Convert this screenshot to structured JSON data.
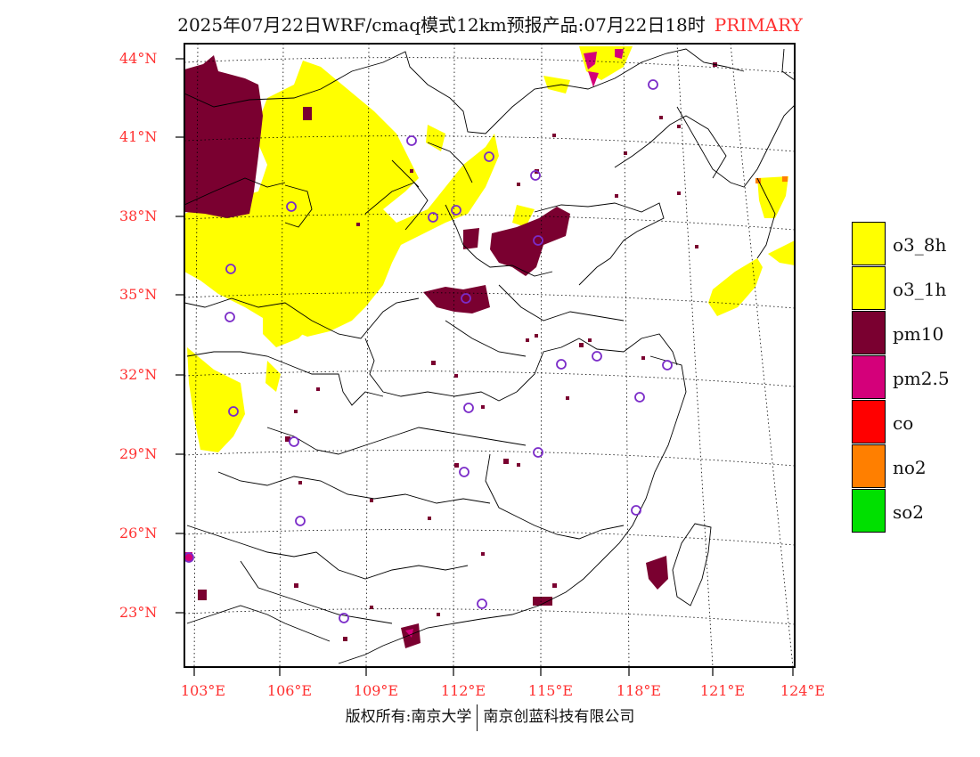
{
  "title": {
    "main": "2025年07月22日WRF/cmaq模式12km预报产品:07月22日18时",
    "tag": "PRIMARY"
  },
  "lat_labels": [
    "44°N",
    "41°N",
    "38°N",
    "35°N",
    "32°N",
    "29°N",
    "26°N",
    "23°N"
  ],
  "lon_labels": [
    "103°E",
    "106°E",
    "109°E",
    "112°E",
    "115°E",
    "118°E",
    "121°E",
    "124°E"
  ],
  "legend": [
    {
      "label": "o3_8h",
      "color": "#ffff00"
    },
    {
      "label": "o3_1h",
      "color": "#ffff00"
    },
    {
      "label": "pm10",
      "color": "#7a0030"
    },
    {
      "label": "pm2.5",
      "color": "#d4007a"
    },
    {
      "label": "co",
      "color": "#ff0000"
    },
    {
      "label": "no2",
      "color": "#ff7f00"
    },
    {
      "label": "so2",
      "color": "#00e000"
    }
  ],
  "copyright": {
    "left": "版权所有:南京大学",
    "right": "南京创蓝科技有限公司"
  }
}
